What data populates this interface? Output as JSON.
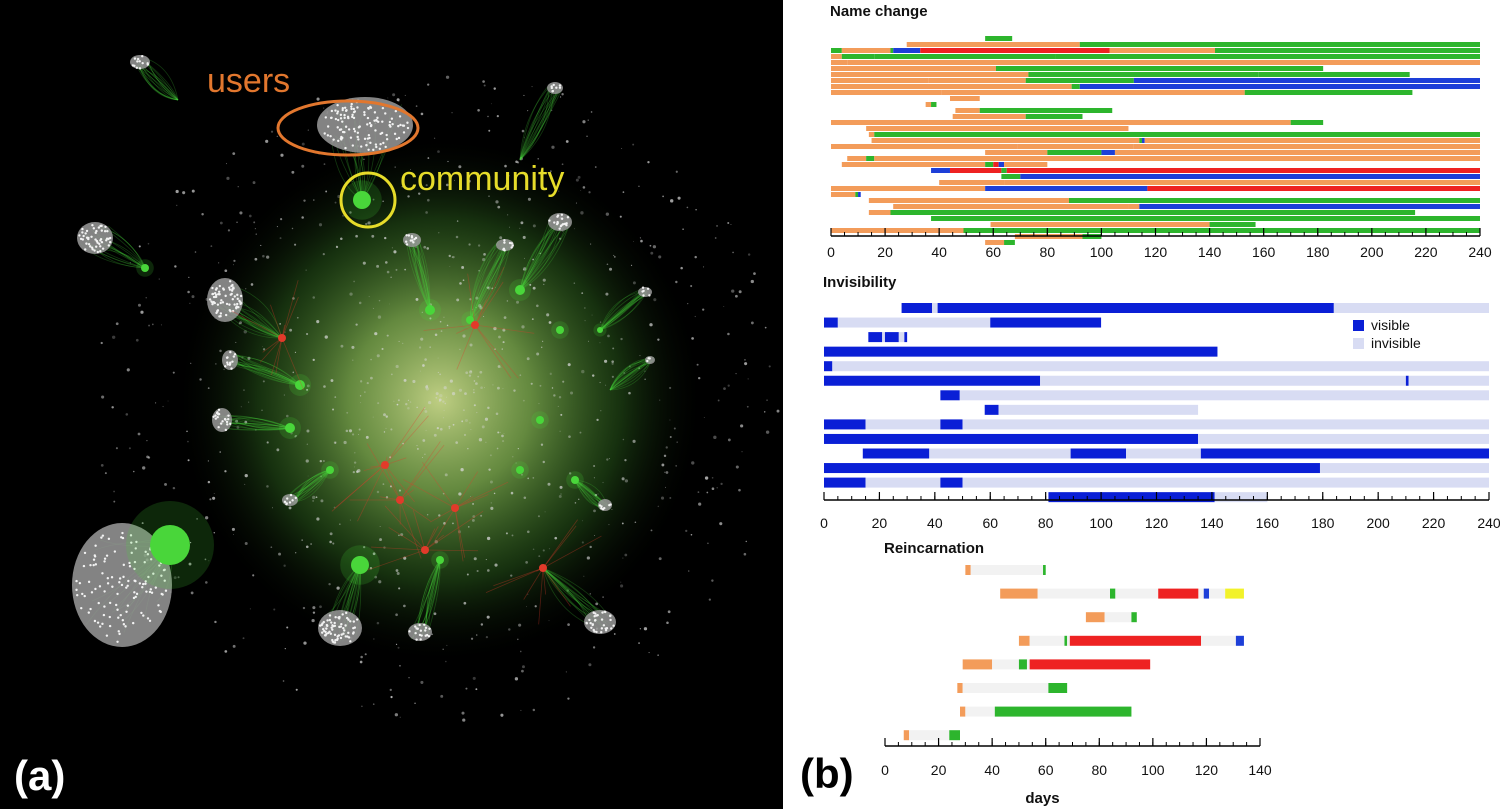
{
  "figure": {
    "panel_a_letter": "(a)",
    "panel_b_letter": "(b)",
    "network": {
      "users_label": "users",
      "community_label": "community",
      "colors": {
        "background": "#000000",
        "users": "#e2772e",
        "community": "#e6dc2a",
        "edges": "#49d63a",
        "hubs_red": "#e23a2a",
        "nodes": "#d9d9d9"
      }
    }
  },
  "colors": {
    "orange": "#f39c5a",
    "green": "#2db52d",
    "blue": "#1d3fd8",
    "red": "#ee2222",
    "yellow": "#f2f22a",
    "navy": "#0a1fd6",
    "light": "#d8dcf3",
    "gap": "#f2f2f2"
  },
  "chart_data": [
    {
      "type": "bar",
      "subtype": "timeline",
      "title": "Name change",
      "xlim": [
        0,
        240
      ],
      "xticks": [
        0,
        20,
        40,
        60,
        80,
        100,
        120,
        140,
        160,
        180,
        200,
        220,
        240
      ],
      "rows": [
        [
          [
            57,
            67,
            "green"
          ]
        ],
        [
          [
            28,
            92,
            "orange"
          ],
          [
            92,
            240,
            "green"
          ]
        ],
        [
          [
            0,
            4,
            "green"
          ],
          [
            4,
            22,
            "orange"
          ],
          [
            22,
            23,
            "green"
          ],
          [
            23,
            33,
            "blue"
          ],
          [
            33,
            103,
            "red"
          ],
          [
            103,
            142,
            "orange"
          ],
          [
            142,
            240,
            "green"
          ]
        ],
        [
          [
            0,
            4,
            "orange"
          ],
          [
            4,
            16,
            "green"
          ],
          [
            16,
            83,
            "green"
          ],
          [
            83,
            240,
            "green"
          ]
        ],
        [
          [
            0,
            6,
            "orange"
          ],
          [
            6,
            240,
            "orange"
          ]
        ],
        [
          [
            0,
            61,
            "orange"
          ],
          [
            61,
            182,
            "green"
          ]
        ],
        [
          [
            0,
            73,
            "orange"
          ],
          [
            73,
            158,
            "green"
          ],
          [
            158,
            214,
            "green"
          ]
        ],
        [
          [
            0,
            36,
            "orange"
          ],
          [
            36,
            72,
            "orange"
          ],
          [
            72,
            112,
            "green"
          ],
          [
            112,
            240,
            "blue"
          ]
        ],
        [
          [
            0,
            89,
            "orange"
          ],
          [
            89,
            92,
            "green"
          ],
          [
            92,
            240,
            "blue"
          ]
        ],
        [
          [
            0,
            41,
            "orange"
          ],
          [
            41,
            153,
            "orange"
          ],
          [
            153,
            215,
            "green"
          ]
        ],
        [
          [
            44,
            55,
            "orange"
          ]
        ],
        [
          [
            35,
            37,
            "orange"
          ],
          [
            37,
            39,
            "green"
          ]
        ],
        [
          [
            46,
            55,
            "orange"
          ],
          [
            55,
            104,
            "green"
          ]
        ],
        [
          [
            45,
            72,
            "orange"
          ],
          [
            72,
            93,
            "green"
          ]
        ],
        [
          [
            0,
            170,
            "orange"
          ],
          [
            170,
            182,
            "green"
          ]
        ],
        [
          [
            13,
            110,
            "orange"
          ]
        ],
        [
          [
            14,
            16,
            "orange"
          ],
          [
            16,
            240,
            "green"
          ]
        ],
        [
          [
            15,
            114,
            "orange"
          ],
          [
            114,
            115,
            "green"
          ],
          [
            115,
            116,
            "blue"
          ],
          [
            116,
            240,
            "orange"
          ]
        ],
        [
          [
            0,
            69,
            "orange"
          ],
          [
            69,
            112,
            "orange"
          ],
          [
            112,
            240,
            "orange"
          ]
        ],
        [
          [
            57,
            80,
            "orange"
          ],
          [
            80,
            100,
            "green"
          ],
          [
            100,
            105,
            "blue"
          ],
          [
            105,
            240,
            "orange"
          ]
        ],
        [
          [
            6,
            13,
            "orange"
          ],
          [
            13,
            16,
            "green"
          ],
          [
            16,
            240,
            "orange"
          ]
        ],
        [
          [
            4,
            57,
            "orange"
          ],
          [
            57,
            60,
            "green"
          ],
          [
            60,
            62,
            "red"
          ],
          [
            62,
            64,
            "blue"
          ],
          [
            64,
            80,
            "orange"
          ]
        ],
        [
          [
            37,
            44,
            "blue"
          ],
          [
            44,
            63,
            "red"
          ],
          [
            63,
            65,
            "green"
          ],
          [
            65,
            240,
            "red"
          ]
        ],
        [
          [
            63,
            70,
            "green"
          ],
          [
            70,
            240,
            "blue"
          ]
        ],
        [
          [
            40,
            64,
            "orange"
          ],
          [
            64,
            240,
            "orange"
          ]
        ],
        [
          [
            0,
            57,
            "orange"
          ],
          [
            57,
            117,
            "blue"
          ],
          [
            117,
            240,
            "red"
          ]
        ],
        [
          [
            0,
            9,
            "orange"
          ],
          [
            9,
            10,
            "green"
          ],
          [
            10,
            11,
            "blue"
          ]
        ],
        [
          [
            14,
            88,
            "orange"
          ],
          [
            88,
            240,
            "green"
          ]
        ],
        [
          [
            23,
            110,
            "orange"
          ],
          [
            110,
            114,
            "orange"
          ],
          [
            114,
            240,
            "blue"
          ]
        ],
        [
          [
            14,
            22,
            "orange"
          ],
          [
            22,
            216,
            "green"
          ]
        ],
        [
          [
            37,
            98,
            "green"
          ],
          [
            98,
            240,
            "green"
          ]
        ],
        [
          [
            59,
            140,
            "orange"
          ],
          [
            140,
            157,
            "green"
          ]
        ],
        [
          [
            0,
            49,
            "orange"
          ],
          [
            49,
            240,
            "green"
          ]
        ],
        [
          [
            68,
            93,
            "orange"
          ],
          [
            93,
            100,
            "green"
          ]
        ],
        [
          [
            57,
            64,
            "orange"
          ],
          [
            64,
            68,
            "green"
          ]
        ]
      ]
    },
    {
      "type": "bar",
      "subtype": "timeline",
      "title": "Invisibility",
      "xlim": [
        0,
        240
      ],
      "xticks": [
        0,
        20,
        40,
        60,
        80,
        100,
        120,
        140,
        160,
        180,
        200,
        220,
        240
      ],
      "legend": [
        {
          "label": "visible",
          "color": "navy"
        },
        {
          "label": "invisible",
          "color": "light"
        }
      ],
      "legend_position": "top-right",
      "rows": [
        [
          [
            28,
            39,
            "navy"
          ],
          [
            39,
            41,
            "light"
          ],
          [
            41,
            184,
            "navy"
          ],
          [
            184,
            240,
            "light"
          ]
        ],
        [
          [
            0,
            5,
            "navy"
          ],
          [
            5,
            60,
            "light"
          ],
          [
            60,
            100,
            "navy"
          ]
        ],
        [
          [
            16,
            21,
            "navy"
          ],
          [
            21,
            22,
            "light"
          ],
          [
            22,
            27,
            "navy"
          ],
          [
            27,
            29,
            "light"
          ],
          [
            29,
            30,
            "navy"
          ]
        ],
        [
          [
            0,
            142,
            "navy"
          ]
        ],
        [
          [
            0,
            3,
            "navy"
          ],
          [
            3,
            240,
            "light"
          ]
        ],
        [
          [
            0,
            78,
            "navy"
          ],
          [
            78,
            210,
            "light"
          ],
          [
            210,
            211,
            "navy"
          ],
          [
            211,
            240,
            "light"
          ]
        ],
        [
          [
            42,
            49,
            "navy"
          ],
          [
            49,
            240,
            "light"
          ]
        ],
        [
          [
            58,
            63,
            "navy"
          ],
          [
            63,
            135,
            "light"
          ]
        ],
        [
          [
            0,
            15,
            "navy"
          ],
          [
            15,
            42,
            "light"
          ],
          [
            42,
            50,
            "navy"
          ],
          [
            50,
            240,
            "light"
          ]
        ],
        [
          [
            0,
            135,
            "navy"
          ],
          [
            135,
            240,
            "light"
          ]
        ],
        [
          [
            14,
            38,
            "navy"
          ],
          [
            38,
            89,
            "light"
          ],
          [
            89,
            109,
            "navy"
          ],
          [
            109,
            136,
            "light"
          ],
          [
            136,
            240,
            "navy"
          ]
        ],
        [
          [
            0,
            179,
            "navy"
          ],
          [
            179,
            240,
            "light"
          ]
        ],
        [
          [
            0,
            15,
            "navy"
          ],
          [
            15,
            42,
            "light"
          ],
          [
            42,
            50,
            "navy"
          ],
          [
            50,
            240,
            "light"
          ]
        ],
        [
          [
            81,
            141,
            "navy"
          ],
          [
            141,
            160,
            "light"
          ]
        ]
      ]
    },
    {
      "type": "bar",
      "subtype": "timeline",
      "title": "Reincarnation",
      "xlabel": "days",
      "xlim": [
        0,
        140
      ],
      "xticks": [
        0,
        20,
        40,
        60,
        80,
        100,
        120,
        140
      ],
      "rows": [
        [
          [
            30,
            32,
            "orange"
          ],
          [
            32,
            59,
            "gap"
          ],
          [
            59,
            60,
            "green"
          ]
        ],
        [
          [
            43,
            57,
            "orange"
          ],
          [
            57,
            84,
            "gap"
          ],
          [
            84,
            86,
            "green"
          ],
          [
            86,
            102,
            "gap"
          ],
          [
            102,
            117,
            "red"
          ],
          [
            117,
            119,
            "gap"
          ],
          [
            119,
            121,
            "blue"
          ],
          [
            121,
            127,
            "gap"
          ],
          [
            127,
            134,
            "yellow"
          ]
        ],
        [
          [
            75,
            82,
            "orange"
          ],
          [
            82,
            92,
            "gap"
          ],
          [
            92,
            94,
            "green"
          ]
        ],
        [
          [
            50,
            54,
            "orange"
          ],
          [
            54,
            67,
            "gap"
          ],
          [
            67,
            68,
            "green"
          ],
          [
            68,
            69,
            "gap"
          ],
          [
            69,
            118,
            "red"
          ],
          [
            118,
            131,
            "gap"
          ],
          [
            131,
            134,
            "blue"
          ]
        ],
        [
          [
            29,
            40,
            "orange"
          ],
          [
            40,
            50,
            "gap"
          ],
          [
            50,
            53,
            "green"
          ],
          [
            53,
            54,
            "gap"
          ],
          [
            54,
            99,
            "red"
          ]
        ],
        [
          [
            27,
            29,
            "orange"
          ],
          [
            29,
            61,
            "gap"
          ],
          [
            61,
            68,
            "green"
          ]
        ],
        [
          [
            28,
            30,
            "orange"
          ],
          [
            30,
            41,
            "gap"
          ],
          [
            41,
            92,
            "green"
          ]
        ],
        [
          [
            7,
            9,
            "orange"
          ],
          [
            9,
            24,
            "gap"
          ],
          [
            24,
            28,
            "green"
          ]
        ]
      ]
    }
  ]
}
